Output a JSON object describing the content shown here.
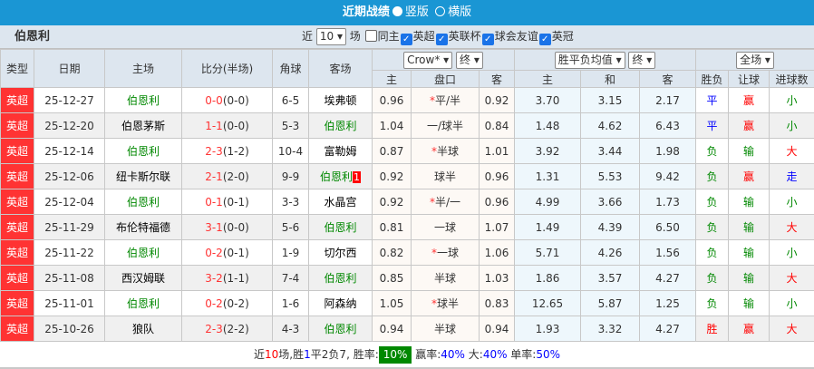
{
  "header": {
    "title": "近期战绩",
    "options": [
      {
        "label": "竖版",
        "selected": true
      },
      {
        "label": "横版",
        "selected": false
      }
    ]
  },
  "filter": {
    "team": "伯恩利",
    "near_label": "近",
    "count": "10",
    "count_unit": "场",
    "same_home": {
      "label": "同主",
      "checked": false
    },
    "leagues": [
      {
        "label": "英超",
        "checked": true
      },
      {
        "label": "英联杯",
        "checked": true
      },
      {
        "label": "球会友谊",
        "checked": true
      },
      {
        "label": "英冠",
        "checked": true
      }
    ]
  },
  "columns": {
    "type": "类型",
    "date": "日期",
    "home": "主场",
    "score": "比分(半场)",
    "corner": "角球",
    "away": "客场",
    "company": "Crow*",
    "odds_time": "终",
    "euro_select": "胜平负均值",
    "euro_time": "终",
    "range": "全场",
    "sub": [
      "主",
      "盘口",
      "客",
      "主",
      "和",
      "客",
      "胜负",
      "让球",
      "进球数"
    ]
  },
  "rows": [
    {
      "type": "英超",
      "date": "25-12-27",
      "home": "伯恩利",
      "home_hl": true,
      "ft": "0-0",
      "ht": "(0-0)",
      "corner": "6-5",
      "away": "埃弗顿",
      "away_hl": false,
      "red": "",
      "h": "0.96",
      "line": "平/半",
      "star": true,
      "a": "0.92",
      "e1": "3.70",
      "e2": "3.15",
      "e3": "2.17",
      "wdl": "平",
      "hc": "赢",
      "ou": "小"
    },
    {
      "type": "英超",
      "date": "25-12-20",
      "home": "伯恩茅斯",
      "home_hl": false,
      "ft": "1-1",
      "ht": "(0-0)",
      "corner": "5-3",
      "away": "伯恩利",
      "away_hl": true,
      "red": "",
      "h": "1.04",
      "line": "一/球半",
      "star": false,
      "a": "0.84",
      "e1": "1.48",
      "e2": "4.62",
      "e3": "6.43",
      "wdl": "平",
      "hc": "赢",
      "ou": "小"
    },
    {
      "type": "英超",
      "date": "25-12-14",
      "home": "伯恩利",
      "home_hl": true,
      "ft": "2-3",
      "ht": "(1-2)",
      "corner": "10-4",
      "away": "富勒姆",
      "away_hl": false,
      "red": "",
      "h": "0.87",
      "line": "半球",
      "star": true,
      "a": "1.01",
      "e1": "3.92",
      "e2": "3.44",
      "e3": "1.98",
      "wdl": "负",
      "hc": "输",
      "ou": "大"
    },
    {
      "type": "英超",
      "date": "25-12-06",
      "home": "纽卡斯尔联",
      "home_hl": false,
      "ft": "2-1",
      "ht": "(2-0)",
      "corner": "9-9",
      "away": "伯恩利",
      "away_hl": true,
      "red": "1",
      "h": "0.92",
      "line": "球半",
      "star": false,
      "a": "0.96",
      "e1": "1.31",
      "e2": "5.53",
      "e3": "9.42",
      "wdl": "负",
      "hc": "赢",
      "ou": "走"
    },
    {
      "type": "英超",
      "date": "25-12-04",
      "home": "伯恩利",
      "home_hl": true,
      "ft": "0-1",
      "ht": "(0-1)",
      "corner": "3-3",
      "away": "水晶宫",
      "away_hl": false,
      "red": "",
      "h": "0.92",
      "line": "半/一",
      "star": true,
      "a": "0.96",
      "e1": "4.99",
      "e2": "3.66",
      "e3": "1.73",
      "wdl": "负",
      "hc": "输",
      "ou": "小"
    },
    {
      "type": "英超",
      "date": "25-11-29",
      "home": "布伦特福德",
      "home_hl": false,
      "ft": "3-1",
      "ht": "(0-0)",
      "corner": "5-6",
      "away": "伯恩利",
      "away_hl": true,
      "red": "",
      "h": "0.81",
      "line": "一球",
      "star": false,
      "a": "1.07",
      "e1": "1.49",
      "e2": "4.39",
      "e3": "6.50",
      "wdl": "负",
      "hc": "输",
      "ou": "大"
    },
    {
      "type": "英超",
      "date": "25-11-22",
      "home": "伯恩利",
      "home_hl": true,
      "ft": "0-2",
      "ht": "(0-1)",
      "corner": "1-9",
      "away": "切尔西",
      "away_hl": false,
      "red": "",
      "h": "0.82",
      "line": "一球",
      "star": true,
      "a": "1.06",
      "e1": "5.71",
      "e2": "4.26",
      "e3": "1.56",
      "wdl": "负",
      "hc": "输",
      "ou": "小"
    },
    {
      "type": "英超",
      "date": "25-11-08",
      "home": "西汉姆联",
      "home_hl": false,
      "ft": "3-2",
      "ht": "(1-1)",
      "corner": "7-4",
      "away": "伯恩利",
      "away_hl": true,
      "red": "",
      "h": "0.85",
      "line": "半球",
      "star": false,
      "a": "1.03",
      "e1": "1.86",
      "e2": "3.57",
      "e3": "4.27",
      "wdl": "负",
      "hc": "输",
      "ou": "大"
    },
    {
      "type": "英超",
      "date": "25-11-01",
      "home": "伯恩利",
      "home_hl": true,
      "ft": "0-2",
      "ht": "(0-2)",
      "corner": "1-6",
      "away": "阿森纳",
      "away_hl": false,
      "red": "",
      "h": "1.05",
      "line": "球半",
      "star": true,
      "a": "0.83",
      "e1": "12.65",
      "e2": "5.87",
      "e3": "1.25",
      "wdl": "负",
      "hc": "输",
      "ou": "小"
    },
    {
      "type": "英超",
      "date": "25-10-26",
      "home": "狼队",
      "home_hl": false,
      "ft": "2-3",
      "ht": "(2-2)",
      "corner": "4-3",
      "away": "伯恩利",
      "away_hl": true,
      "red": "",
      "h": "0.94",
      "line": "半球",
      "star": false,
      "a": "0.94",
      "e1": "1.93",
      "e2": "3.32",
      "e3": "4.27",
      "wdl": "胜",
      "hc": "赢",
      "ou": "大"
    }
  ],
  "summary": {
    "p1": "近",
    "n": "10",
    "p2": "场,胜",
    "w": "1",
    "p3": "平",
    "d": "2",
    "p4": "负",
    "l": "7",
    "p5": ", 胜率:",
    "win_rate": "10%",
    "p6": " 赢率:",
    "hc_rate": "40%",
    "p7": " 大:",
    "over_rate": "40%",
    "p8": " 单率:",
    "odd_rate": "50%"
  },
  "colors": {
    "title_bar": "#1a96d4",
    "league": "#ff3333",
    "team_highlight": "#008800",
    "win": "#ff0000",
    "draw": "#0000ff",
    "loss": "#008800"
  }
}
